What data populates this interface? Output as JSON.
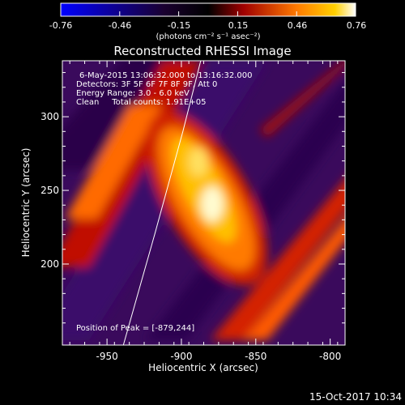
{
  "colorbar": {
    "ticks": [
      "-0.76",
      "-0.46",
      "-0.15",
      "0.15",
      "0.46",
      "0.76"
    ],
    "units": "(photons cm⁻² s⁻¹ asec⁻²)",
    "range": [
      -0.76,
      0.76
    ]
  },
  "plot": {
    "title": "Reconstructed RHESSI Image",
    "info": [
      "6-May-2015 13:06:32.000 to 13:16:32.000",
      "Detectors: 3F 5F 6F 7F 8F 9F, Att 0",
      "Energy Range: 3.0 - 6.0 keV",
      "Clean     Total counts: 1.91E+05"
    ],
    "peak_label": "Position of Peak = [-879,244]"
  },
  "footer": {
    "timestamp": "15-Oct-2017 10:34"
  },
  "chart_data": {
    "type": "heatmap",
    "title": "Reconstructed RHESSI Image",
    "xlabel": "Heliocentric X (arcsec)",
    "ylabel": "Heliocentric Y (arcsec)",
    "xlim": [
      -980,
      -790
    ],
    "ylim": [
      145,
      338
    ],
    "x_ticks": [
      "-950",
      "-900",
      "-850",
      "-800"
    ],
    "x_tick_values": [
      -950,
      -900,
      -850,
      -800
    ],
    "y_ticks": [
      "200",
      "250",
      "300"
    ],
    "y_tick_values": [
      200,
      250,
      300
    ],
    "peak": [
      -879,
      244
    ],
    "limb_points": [
      [
        -939,
        145
      ],
      [
        -918,
        220
      ],
      [
        -899,
        290
      ],
      [
        -887,
        338
      ]
    ]
  }
}
